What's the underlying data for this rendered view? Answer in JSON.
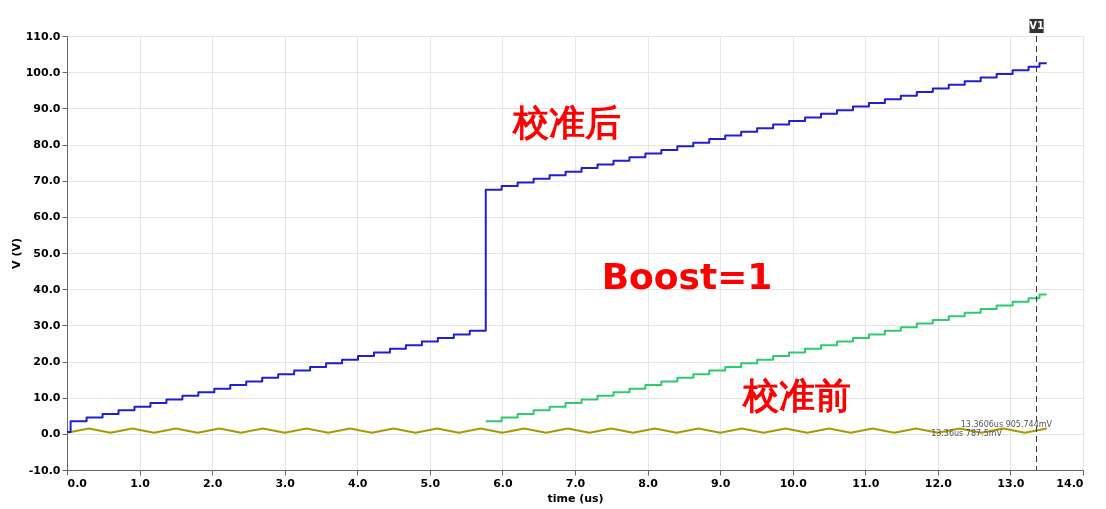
{
  "chart_data": {
    "type": "step",
    "xlabel": "time (us)",
    "ylabel": "V (V)",
    "xlim": [
      0,
      14
    ],
    "ylim": [
      -10,
      110
    ],
    "xticks": [
      {
        "value": 0,
        "label": "0.0"
      },
      {
        "value": 1,
        "label": "1.0"
      },
      {
        "value": 2,
        "label": "2.0"
      },
      {
        "value": 3,
        "label": "3.0"
      },
      {
        "value": 4,
        "label": "4.0"
      },
      {
        "value": 5,
        "label": "5.0"
      },
      {
        "value": 6,
        "label": "6.0"
      },
      {
        "value": 7,
        "label": "7.0"
      },
      {
        "value": 8,
        "label": "8.0"
      },
      {
        "value": 9,
        "label": "9.0"
      },
      {
        "value": 10,
        "label": "10.0"
      },
      {
        "value": 11,
        "label": "11.0"
      },
      {
        "value": 12,
        "label": "12.0"
      },
      {
        "value": 13,
        "label": "13.0"
      },
      {
        "value": 14,
        "label": "14.0"
      }
    ],
    "yticks": [
      {
        "value": -10,
        "label": "-10.0"
      },
      {
        "value": 0,
        "label": "0.0"
      },
      {
        "value": 10,
        "label": "10.0"
      },
      {
        "value": 20,
        "label": "20.0"
      },
      {
        "value": 30,
        "label": "30.0"
      },
      {
        "value": 40,
        "label": "40.0"
      },
      {
        "value": 50,
        "label": "50.0"
      },
      {
        "value": 60,
        "label": "60.0"
      },
      {
        "value": 70,
        "label": "70.0"
      },
      {
        "value": 80,
        "label": "80.0"
      },
      {
        "value": 90,
        "label": "90.0"
      },
      {
        "value": 100,
        "label": "100.0"
      },
      {
        "value": 110,
        "label": "110.0"
      }
    ],
    "grid": true,
    "line_style": "solid",
    "marker": "none",
    "series": [
      {
        "type": "line",
        "color": "#a89a00",
        "x": [
          0,
          0.3,
          0.6,
          0.9,
          1.2,
          1.5,
          1.8,
          2.1,
          2.4,
          2.7,
          3,
          3.3,
          3.6,
          3.9,
          4.2,
          4.5,
          4.8,
          5.1,
          5.4,
          5.7,
          6,
          6.3,
          6.6,
          6.9,
          7.2,
          7.5,
          7.8,
          8.1,
          8.4,
          8.7,
          9,
          9.3,
          9.6,
          9.9,
          10.2,
          10.5,
          10.8,
          11.1,
          11.4,
          11.7,
          12,
          12.3,
          12.6,
          12.9,
          13.2,
          13.5
        ],
        "values": [
          0.3,
          1.5,
          0.3,
          1.5,
          0.3,
          1.5,
          0.3,
          1.5,
          0.3,
          1.5,
          0.3,
          1.5,
          0.3,
          1.5,
          0.3,
          1.5,
          0.3,
          1.5,
          0.3,
          1.5,
          0.3,
          1.5,
          0.3,
          1.5,
          0.3,
          1.5,
          0.3,
          1.5,
          0.3,
          1.5,
          0.3,
          1.5,
          0.3,
          1.5,
          0.3,
          1.5,
          0.3,
          1.5,
          0.3,
          1.5,
          0.3,
          1.5,
          0.3,
          1.5,
          0.3,
          1.5
        ]
      },
      {
        "color": "#2ecc71",
        "x": [
          5.77,
          5.99,
          6.21,
          6.43,
          6.65,
          6.87,
          7.09,
          7.31,
          7.53,
          7.75,
          7.97,
          8.19,
          8.41,
          8.63,
          8.85,
          9.07,
          9.29,
          9.51,
          9.73,
          9.95,
          10.17,
          10.39,
          10.61,
          10.83,
          11.05,
          11.27,
          11.49,
          11.71,
          11.93,
          12.15,
          12.37,
          12.59,
          12.81,
          13.03,
          13.25,
          13.4,
          13.5
        ],
        "values": [
          3.5,
          4.5,
          5.5,
          6.5,
          7.5,
          8.5,
          9.5,
          10.5,
          11.5,
          12.5,
          13.5,
          14.5,
          15.5,
          16.5,
          17.5,
          18.5,
          19.5,
          20.5,
          21.5,
          22.5,
          23.5,
          24.5,
          25.5,
          26.5,
          27.5,
          28.5,
          29.5,
          30.5,
          31.5,
          32.5,
          33.5,
          34.5,
          35.5,
          36.5,
          37.5,
          38.5,
          38.5
        ]
      },
      {
        "color": "#1f1fd6",
        "x": [
          0,
          0.05,
          0.27,
          0.49,
          0.71,
          0.93,
          1.15,
          1.37,
          1.59,
          1.81,
          2.03,
          2.25,
          2.47,
          2.69,
          2.91,
          3.13,
          3.35,
          3.57,
          3.79,
          4.01,
          4.23,
          4.45,
          4.67,
          4.89,
          5.11,
          5.33,
          5.55,
          5.77,
          5.99,
          6.21,
          6.43,
          6.65,
          6.87,
          7.09,
          7.31,
          7.53,
          7.75,
          7.97,
          8.19,
          8.41,
          8.63,
          8.85,
          9.07,
          9.29,
          9.51,
          9.73,
          9.95,
          10.17,
          10.39,
          10.61,
          10.83,
          11.05,
          11.27,
          11.49,
          11.71,
          11.93,
          12.15,
          12.37,
          12.59,
          12.81,
          13.03,
          13.25,
          13.4,
          13.5
        ],
        "values": [
          0.5,
          3.5,
          4.5,
          5.5,
          6.5,
          7.5,
          8.5,
          9.5,
          10.5,
          11.5,
          12.5,
          13.5,
          14.5,
          15.5,
          16.5,
          17.5,
          18.5,
          19.5,
          20.5,
          21.5,
          22.5,
          23.5,
          24.5,
          25.5,
          26.5,
          27.5,
          28.5,
          67.5,
          68.5,
          69.5,
          70.5,
          71.5,
          72.5,
          73.5,
          74.5,
          75.5,
          76.5,
          77.5,
          78.5,
          79.5,
          80.5,
          81.5,
          82.5,
          83.5,
          84.5,
          85.5,
          86.5,
          87.5,
          88.5,
          89.5,
          90.5,
          91.5,
          92.5,
          93.5,
          94.5,
          95.5,
          96.5,
          97.5,
          98.5,
          99.5,
          100.5,
          101.5,
          102.5,
          102.5
        ]
      }
    ],
    "ref_lines": [
      {
        "axis": "x",
        "value": 13.36,
        "label": "V1",
        "color": "#333333",
        "line_style": "dashed"
      }
    ],
    "annotations": [
      "校准后",
      "Boost=1",
      "校准前",
      "13.3606us 905.744mV",
      "13.36us 787.5mV"
    ]
  }
}
